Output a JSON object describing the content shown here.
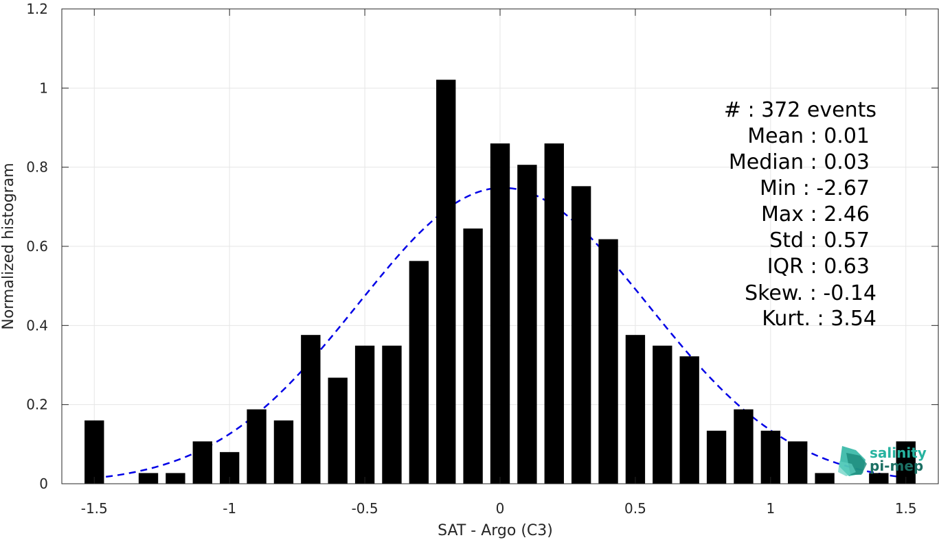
{
  "chart_data": {
    "type": "bar",
    "xlabel": "SAT - Argo (C3)",
    "ylabel": "Normalized histogram",
    "xlim": [
      -1.62,
      1.62
    ],
    "ylim": [
      0,
      1.2
    ],
    "xticks": [
      "-1.5",
      "-1",
      "-0.5",
      "0",
      "0.5",
      "1",
      "1.5"
    ],
    "xtick_values": [
      -1.5,
      -1,
      -0.5,
      0,
      0.5,
      1,
      1.5
    ],
    "yticks": [
      "0",
      "0.2",
      "0.4",
      "0.6",
      "0.8",
      "1",
      "1.2"
    ],
    "ytick_values": [
      0,
      0.2,
      0.4,
      0.6,
      0.8,
      1.0,
      1.2
    ],
    "grid": true,
    "bar_color": "#000000",
    "bin_width": 0.1,
    "bins": [
      {
        "x": -1.5,
        "y": 0.16
      },
      {
        "x": -1.3,
        "y": 0.027
      },
      {
        "x": -1.2,
        "y": 0.027
      },
      {
        "x": -1.1,
        "y": 0.107
      },
      {
        "x": -1.0,
        "y": 0.08
      },
      {
        "x": -0.9,
        "y": 0.188
      },
      {
        "x": -0.8,
        "y": 0.16
      },
      {
        "x": -0.7,
        "y": 0.376
      },
      {
        "x": -0.6,
        "y": 0.268
      },
      {
        "x": -0.5,
        "y": 0.349
      },
      {
        "x": -0.4,
        "y": 0.349
      },
      {
        "x": -0.3,
        "y": 0.563
      },
      {
        "x": -0.2,
        "y": 1.021
      },
      {
        "x": -0.1,
        "y": 0.645
      },
      {
        "x": 0.0,
        "y": 0.86
      },
      {
        "x": 0.1,
        "y": 0.806
      },
      {
        "x": 0.2,
        "y": 0.86
      },
      {
        "x": 0.3,
        "y": 0.752
      },
      {
        "x": 0.4,
        "y": 0.618
      },
      {
        "x": 0.5,
        "y": 0.376
      },
      {
        "x": 0.6,
        "y": 0.349
      },
      {
        "x": 0.7,
        "y": 0.322
      },
      {
        "x": 0.8,
        "y": 0.134
      },
      {
        "x": 0.9,
        "y": 0.188
      },
      {
        "x": 1.0,
        "y": 0.134
      },
      {
        "x": 1.1,
        "y": 0.107
      },
      {
        "x": 1.2,
        "y": 0.027
      },
      {
        "x": 1.4,
        "y": 0.027
      },
      {
        "x": 1.5,
        "y": 0.107
      }
    ],
    "fit": {
      "type": "gaussian",
      "mean": 0.01,
      "std": 0.535,
      "xrange": [
        -1.5,
        1.5
      ],
      "color": "#0000e6",
      "style": "dashed"
    }
  },
  "stats": {
    "lines": [
      "#  : 372 events",
      "Mean : 0.01",
      "Median : 0.03",
      "Min : -2.67",
      "Max : 2.46",
      "Std : 0.57",
      "IQR : 0.63",
      "Skew. : -0.14",
      "Kurt. : 3.54"
    ]
  },
  "logo": {
    "line1": "salinity",
    "line2": "pi-mep",
    "color1": "#27b3a0",
    "color2": "#1b6f63"
  }
}
